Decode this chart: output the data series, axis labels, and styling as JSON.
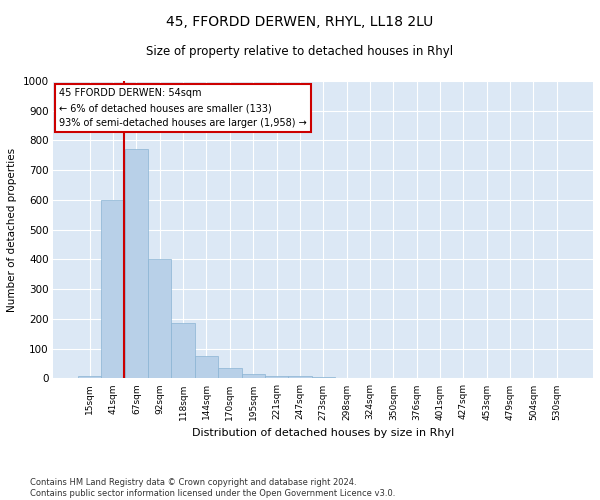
{
  "title": "45, FFORDD DERWEN, RHYL, LL18 2LU",
  "subtitle": "Size of property relative to detached houses in Rhyl",
  "xlabel": "Distribution of detached houses by size in Rhyl",
  "ylabel": "Number of detached properties",
  "bar_color": "#b8d0e8",
  "bar_edge_color": "#8ab4d4",
  "bg_color": "#dce8f5",
  "grid_color": "#ffffff",
  "categories": [
    "15sqm",
    "41sqm",
    "67sqm",
    "92sqm",
    "118sqm",
    "144sqm",
    "170sqm",
    "195sqm",
    "221sqm",
    "247sqm",
    "273sqm",
    "298sqm",
    "324sqm",
    "350sqm",
    "376sqm",
    "401sqm",
    "427sqm",
    "453sqm",
    "479sqm",
    "504sqm",
    "530sqm"
  ],
  "values": [
    10,
    600,
    770,
    400,
    185,
    75,
    35,
    15,
    10,
    8,
    5,
    0,
    0,
    0,
    0,
    0,
    0,
    0,
    0,
    0,
    0
  ],
  "ylim": [
    0,
    1000
  ],
  "yticks": [
    0,
    100,
    200,
    300,
    400,
    500,
    600,
    700,
    800,
    900,
    1000
  ],
  "vline_x": 1.45,
  "vline_color": "#cc0000",
  "annotation_text": "45 FFORDD DERWEN: 54sqm\n← 6% of detached houses are smaller (133)\n93% of semi-detached houses are larger (1,958) →",
  "annotation_box_color": "#cc0000",
  "footnote": "Contains HM Land Registry data © Crown copyright and database right 2024.\nContains public sector information licensed under the Open Government Licence v3.0.",
  "bar_width": 1.0
}
